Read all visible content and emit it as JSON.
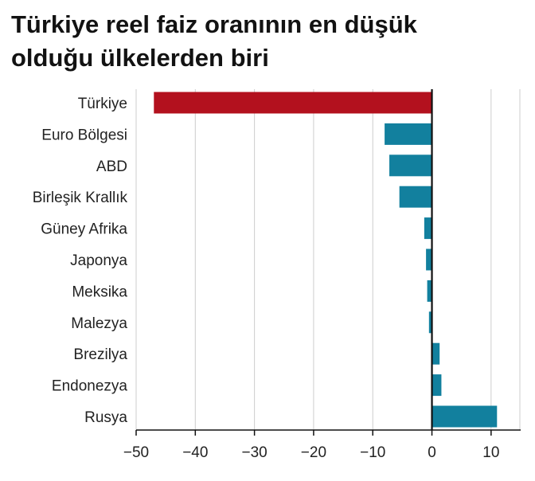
{
  "title_lines": [
    "Türkiye reel faiz oranının en düşük",
    "olduğu ülkelerden biri"
  ],
  "colors": {
    "highlight": "#b3111e",
    "default": "#12809e",
    "grid": "#cccccc",
    "zero_line": "#111111",
    "axis": "#111111"
  },
  "chart_data": {
    "type": "bar",
    "orientation": "horizontal",
    "title": "Türkiye reel faiz oranının en düşük olduğu ülkelerden biri",
    "xlabel": "",
    "ylabel": "",
    "categories": [
      "Türkiye",
      "Euro Bölgesi",
      "ABD",
      "Birleşik Krallık",
      "Güney Afrika",
      "Japonya",
      "Meksika",
      "Malezya",
      "Brezilya",
      "Endonezya",
      "Rusya"
    ],
    "values": [
      -47,
      -8,
      -7.2,
      -5.5,
      -1.3,
      -1,
      -0.8,
      -0.5,
      1.3,
      1.6,
      11
    ],
    "highlight_category": "Türkiye",
    "xlim": [
      -50,
      15
    ],
    "xticks": [
      -50,
      -40,
      -30,
      -20,
      -10,
      0,
      10
    ],
    "xtick_labels": [
      "−50",
      "−40",
      "−30",
      "−20",
      "−10",
      "0",
      "10"
    ],
    "grid": true
  }
}
